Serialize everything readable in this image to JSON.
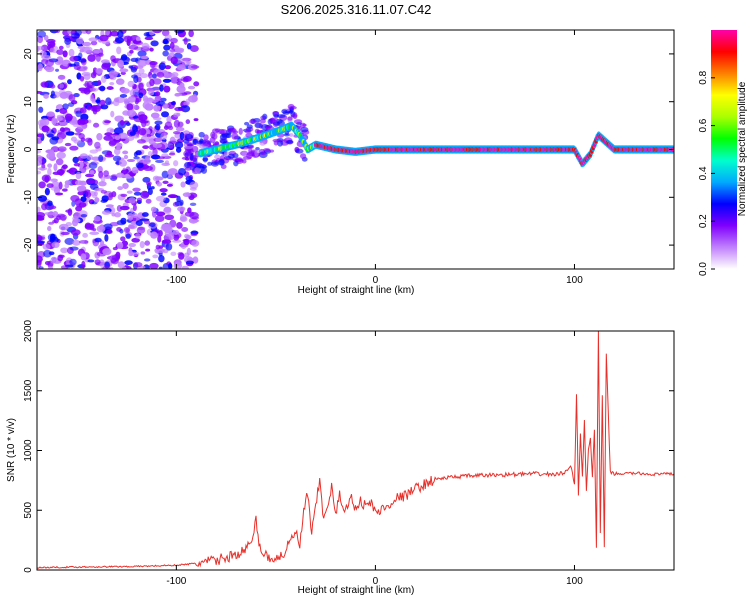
{
  "chart_data": [
    {
      "type": "heatmap",
      "title": "S206.2025.316.11.07.C42",
      "xlabel": "Height of straight line (km)",
      "ylabel": "Frequency (Hz)",
      "xlim": [
        -170,
        150
      ],
      "ylim": [
        -25,
        25
      ],
      "xticks": [
        "-100",
        "0",
        "100"
      ],
      "yticks": [
        "20",
        "10",
        "0",
        "-10",
        "-20"
      ],
      "colorbar": {
        "label": "Normalized spectral amplitude",
        "range": [
          0,
          1
        ],
        "ticks": [
          "0.0",
          "0.2",
          "0.4",
          "0.6",
          "0.8"
        ],
        "colors": [
          "#ffffff",
          "#c080ff",
          "#7f00ff",
          "#0000ff",
          "#00aaff",
          "#00ffcc",
          "#00ff00",
          "#aaff00",
          "#ffff00",
          "#ff8000",
          "#ff0000",
          "#ff00aa"
        ]
      },
      "ridge": {
        "x": [
          -90,
          -80,
          -70,
          -62,
          -55,
          -48,
          -42,
          -38,
          -34,
          -30,
          -20,
          -10,
          0,
          50,
          100,
          104,
          108,
          112,
          120,
          150
        ],
        "y": [
          -1,
          0,
          1,
          2,
          3,
          4,
          5,
          3,
          0,
          1,
          0,
          -0.5,
          0,
          0,
          0,
          -3,
          -1,
          3,
          0,
          0
        ]
      }
    },
    {
      "type": "line",
      "xlabel": "Height of straight line (km)",
      "ylabel": "SNR (10 * v/v)",
      "xlim": [
        -170,
        150
      ],
      "ylim": [
        0,
        2000
      ],
      "xticks": [
        "-100",
        "0",
        "100"
      ],
      "yticks": [
        "2000",
        "1500",
        "1000",
        "500",
        "0"
      ],
      "color": "#e8302a",
      "series": [
        {
          "name": "SNR",
          "x": [
            -170,
            -150,
            -120,
            -100,
            -90,
            -80,
            -72,
            -66,
            -62,
            -60,
            -58,
            -54,
            -50,
            -46,
            -42,
            -40,
            -38,
            -36,
            -34,
            -32,
            -30,
            -28,
            -26,
            -24,
            -22,
            -20,
            -18,
            -15,
            -12,
            -10,
            -8,
            -5,
            -2,
            0,
            5,
            10,
            15,
            20,
            25,
            30,
            40,
            50,
            60,
            70,
            80,
            90,
            95,
            98,
            100,
            101,
            102,
            103,
            104,
            105,
            106,
            107,
            108,
            109,
            110,
            111,
            112,
            113,
            114,
            115,
            116,
            118,
            120,
            130,
            140,
            150
          ],
          "y": [
            20,
            25,
            30,
            40,
            55,
            80,
            120,
            160,
            230,
            420,
            180,
            110,
            90,
            140,
            260,
            320,
            200,
            480,
            640,
            300,
            520,
            760,
            400,
            560,
            690,
            460,
            620,
            500,
            600,
            520,
            580,
            540,
            560,
            480,
            520,
            600,
            620,
            680,
            720,
            760,
            780,
            790,
            795,
            800,
            805,
            800,
            810,
            880,
            720,
            1480,
            620,
            1150,
            780,
            1250,
            650,
            1000,
            1100,
            780,
            1180,
            180,
            2000,
            300,
            1450,
            200,
            1800,
            820,
            805,
            810,
            800,
            805
          ]
        }
      ]
    }
  ]
}
